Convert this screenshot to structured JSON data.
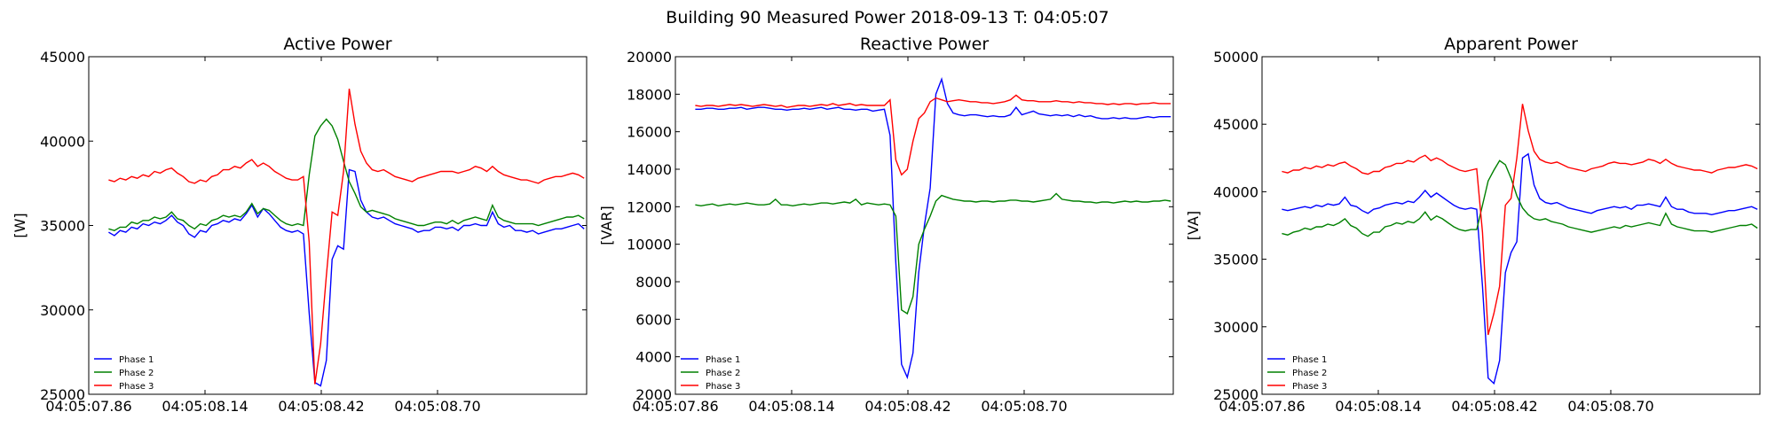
{
  "figure": {
    "suptitle": "Building 90 Measured Power 2018-09-13 T: 04:05:07"
  },
  "chart_data": [
    {
      "type": "line",
      "title": "Active Power",
      "xlabel": "",
      "ylabel": "[W]",
      "x_ticks": [
        "04:05:07.86",
        "04:05:08.14",
        "04:05:08.42",
        "04:05:08.70"
      ],
      "ylim": [
        25000,
        45000
      ],
      "y_ticks": [
        "25000",
        "30000",
        "35000",
        "40000",
        "45000"
      ],
      "legend_position": "lower-left",
      "series": [
        {
          "name": "Phase 1",
          "color": "#0000ff",
          "values": [
            34600,
            34400,
            34700,
            34600,
            34900,
            34800,
            35100,
            35000,
            35200,
            35100,
            35300,
            35600,
            35200,
            35000,
            34500,
            34300,
            34700,
            34600,
            35000,
            35100,
            35300,
            35200,
            35400,
            35300,
            35700,
            36200,
            35500,
            36000,
            35700,
            35300,
            34900,
            34700,
            34600,
            34700,
            34500,
            29800,
            25700,
            25500,
            27000,
            33000,
            33800,
            33600,
            38300,
            38200,
            36500,
            35800,
            35500,
            35400,
            35500,
            35300,
            35100,
            35000,
            34900,
            34800,
            34600,
            34700,
            34700,
            34900,
            34900,
            34800,
            34900,
            34700,
            35000,
            35000,
            35100,
            35000,
            35000,
            35800,
            35100,
            34900,
            35000,
            34700,
            34700,
            34600,
            34700,
            34500,
            34600,
            34700,
            34800,
            34800,
            34900,
            35000,
            35100,
            34800
          ]
        },
        {
          "name": "Phase 2",
          "color": "#008000",
          "values": [
            34800,
            34700,
            34900,
            34900,
            35200,
            35100,
            35300,
            35300,
            35500,
            35400,
            35500,
            35800,
            35400,
            35300,
            35000,
            34800,
            35100,
            35000,
            35300,
            35400,
            35600,
            35500,
            35600,
            35500,
            35800,
            36300,
            35700,
            36000,
            35900,
            35600,
            35300,
            35100,
            35000,
            35100,
            35000,
            38000,
            40300,
            40900,
            41300,
            40900,
            40100,
            38800,
            37600,
            36900,
            36100,
            35800,
            35900,
            35800,
            35700,
            35600,
            35400,
            35300,
            35200,
            35100,
            35000,
            35000,
            35100,
            35200,
            35200,
            35100,
            35300,
            35100,
            35300,
            35400,
            35500,
            35400,
            35300,
            36200,
            35500,
            35300,
            35200,
            35100,
            35100,
            35100,
            35100,
            35000,
            35100,
            35200,
            35300,
            35400,
            35500,
            35500,
            35600,
            35400
          ]
        },
        {
          "name": "Phase 3",
          "color": "#ff0000",
          "values": [
            37700,
            37600,
            37800,
            37700,
            37900,
            37800,
            38000,
            37900,
            38200,
            38100,
            38300,
            38400,
            38100,
            37900,
            37600,
            37500,
            37700,
            37600,
            37900,
            38000,
            38300,
            38300,
            38500,
            38400,
            38700,
            38900,
            38500,
            38700,
            38500,
            38200,
            38000,
            37800,
            37700,
            37700,
            37900,
            34000,
            25600,
            28000,
            32000,
            35800,
            35600,
            38200,
            43100,
            41000,
            39400,
            38700,
            38300,
            38200,
            38300,
            38100,
            37900,
            37800,
            37700,
            37600,
            37800,
            37900,
            38000,
            38100,
            38200,
            38200,
            38200,
            38100,
            38200,
            38300,
            38500,
            38400,
            38200,
            38500,
            38200,
            38000,
            37900,
            37800,
            37700,
            37700,
            37600,
            37500,
            37700,
            37800,
            37900,
            37900,
            38000,
            38100,
            38000,
            37800
          ]
        }
      ]
    },
    {
      "type": "line",
      "title": "Reactive Power",
      "xlabel": "",
      "ylabel": "[VAR]",
      "x_ticks": [
        "04:05:07.86",
        "04:05:08.14",
        "04:05:08.42",
        "04:05:08.70"
      ],
      "ylim": [
        2000,
        20000
      ],
      "y_ticks": [
        "2000",
        "4000",
        "6000",
        "8000",
        "10000",
        "12000",
        "14000",
        "16000",
        "18000",
        "20000"
      ],
      "legend_position": "lower-left",
      "series": [
        {
          "name": "Phase 1",
          "color": "#0000ff",
          "values": [
            17200,
            17200,
            17250,
            17250,
            17200,
            17200,
            17250,
            17250,
            17300,
            17200,
            17250,
            17300,
            17300,
            17250,
            17200,
            17200,
            17150,
            17200,
            17200,
            17250,
            17200,
            17250,
            17300,
            17200,
            17250,
            17300,
            17200,
            17200,
            17150,
            17200,
            17200,
            17100,
            17150,
            17200,
            15800,
            9000,
            3600,
            2900,
            4200,
            8500,
            11000,
            13000,
            18000,
            18800,
            17500,
            17000,
            16900,
            16850,
            16900,
            16900,
            16850,
            16800,
            16850,
            16800,
            16800,
            16900,
            17300,
            16900,
            17000,
            17100,
            16950,
            16900,
            16850,
            16900,
            16850,
            16900,
            16800,
            16900,
            16800,
            16850,
            16750,
            16700,
            16700,
            16750,
            16700,
            16750,
            16700,
            16700,
            16750,
            16800,
            16750,
            16800,
            16800,
            16800
          ]
        },
        {
          "name": "Phase 2",
          "color": "#008000",
          "values": [
            12100,
            12050,
            12100,
            12150,
            12050,
            12100,
            12150,
            12100,
            12150,
            12200,
            12150,
            12100,
            12100,
            12150,
            12400,
            12100,
            12100,
            12050,
            12100,
            12150,
            12100,
            12150,
            12200,
            12200,
            12150,
            12200,
            12250,
            12200,
            12400,
            12100,
            12200,
            12150,
            12100,
            12150,
            12100,
            11500,
            6500,
            6300,
            7200,
            10000,
            10800,
            11500,
            12300,
            12600,
            12500,
            12400,
            12350,
            12300,
            12300,
            12250,
            12300,
            12300,
            12250,
            12300,
            12300,
            12350,
            12350,
            12300,
            12300,
            12250,
            12300,
            12350,
            12400,
            12700,
            12400,
            12350,
            12300,
            12300,
            12250,
            12250,
            12200,
            12250,
            12250,
            12200,
            12250,
            12300,
            12250,
            12300,
            12250,
            12250,
            12300,
            12300,
            12350,
            12300
          ]
        },
        {
          "name": "Phase 3",
          "color": "#ff0000",
          "values": [
            17400,
            17350,
            17400,
            17400,
            17350,
            17400,
            17450,
            17400,
            17450,
            17400,
            17350,
            17400,
            17450,
            17400,
            17350,
            17400,
            17300,
            17350,
            17400,
            17400,
            17350,
            17400,
            17450,
            17400,
            17500,
            17400,
            17450,
            17500,
            17400,
            17450,
            17400,
            17400,
            17400,
            17400,
            17700,
            14500,
            13700,
            14000,
            15500,
            16700,
            17000,
            17600,
            17800,
            17700,
            17600,
            17650,
            17700,
            17650,
            17600,
            17600,
            17550,
            17550,
            17500,
            17550,
            17600,
            17700,
            17950,
            17700,
            17650,
            17650,
            17600,
            17600,
            17600,
            17650,
            17600,
            17600,
            17550,
            17600,
            17550,
            17550,
            17500,
            17500,
            17450,
            17500,
            17450,
            17500,
            17500,
            17450,
            17500,
            17500,
            17550,
            17500,
            17500,
            17500
          ]
        }
      ]
    },
    {
      "type": "line",
      "title": "Apparent Power",
      "xlabel": "",
      "ylabel": "[VA]",
      "x_ticks": [
        "04:05:07.86",
        "04:05:08.14",
        "04:05:08.42",
        "04:05:08.70"
      ],
      "ylim": [
        25000,
        50000
      ],
      "y_ticks": [
        "25000",
        "30000",
        "35000",
        "40000",
        "45000",
        "50000"
      ],
      "legend_position": "lower-left",
      "series": [
        {
          "name": "Phase 1",
          "color": "#0000ff",
          "values": [
            38700,
            38600,
            38700,
            38800,
            38900,
            38800,
            39000,
            38900,
            39100,
            39000,
            39100,
            39600,
            39000,
            38900,
            38600,
            38400,
            38700,
            38800,
            39000,
            39100,
            39200,
            39100,
            39300,
            39200,
            39600,
            40100,
            39600,
            39900,
            39600,
            39300,
            39000,
            38800,
            38700,
            38800,
            38700,
            33000,
            26200,
            25800,
            27500,
            34000,
            35500,
            36300,
            42500,
            42800,
            40500,
            39500,
            39200,
            39100,
            39200,
            39000,
            38800,
            38700,
            38600,
            38500,
            38400,
            38600,
            38700,
            38800,
            38900,
            38800,
            38900,
            38700,
            39000,
            39000,
            39100,
            39000,
            38900,
            39600,
            38900,
            38700,
            38700,
            38500,
            38400,
            38400,
            38400,
            38300,
            38400,
            38500,
            38600,
            38600,
            38700,
            38800,
            38900,
            38700
          ]
        },
        {
          "name": "Phase 2",
          "color": "#008000",
          "values": [
            36900,
            36800,
            37000,
            37100,
            37300,
            37200,
            37400,
            37400,
            37600,
            37500,
            37700,
            38000,
            37500,
            37300,
            36900,
            36700,
            37000,
            37000,
            37400,
            37500,
            37700,
            37600,
            37800,
            37700,
            38000,
            38500,
            37900,
            38200,
            38000,
            37700,
            37400,
            37200,
            37100,
            37200,
            37200,
            39000,
            40800,
            41600,
            42300,
            42000,
            41000,
            39700,
            38800,
            38300,
            38000,
            37900,
            38000,
            37800,
            37700,
            37600,
            37400,
            37300,
            37200,
            37100,
            37000,
            37100,
            37200,
            37300,
            37400,
            37300,
            37500,
            37400,
            37500,
            37600,
            37700,
            37600,
            37500,
            38400,
            37600,
            37400,
            37300,
            37200,
            37100,
            37100,
            37100,
            37000,
            37100,
            37200,
            37300,
            37400,
            37500,
            37500,
            37600,
            37300
          ]
        },
        {
          "name": "Phase 3",
          "color": "#ff0000",
          "values": [
            41500,
            41400,
            41600,
            41600,
            41800,
            41700,
            41900,
            41800,
            42000,
            41900,
            42100,
            42200,
            41900,
            41700,
            41400,
            41300,
            41500,
            41500,
            41800,
            41900,
            42100,
            42100,
            42300,
            42200,
            42500,
            42700,
            42300,
            42500,
            42300,
            42000,
            41800,
            41600,
            41500,
            41600,
            41700,
            37000,
            29400,
            31000,
            33000,
            39000,
            39500,
            42500,
            46500,
            44500,
            43000,
            42400,
            42200,
            42100,
            42200,
            42000,
            41800,
            41700,
            41600,
            41500,
            41700,
            41800,
            41900,
            42100,
            42200,
            42100,
            42100,
            42000,
            42100,
            42200,
            42400,
            42300,
            42100,
            42400,
            42100,
            41900,
            41800,
            41700,
            41600,
            41600,
            41500,
            41400,
            41600,
            41700,
            41800,
            41800,
            41900,
            42000,
            41900,
            41700
          ]
        }
      ]
    }
  ]
}
